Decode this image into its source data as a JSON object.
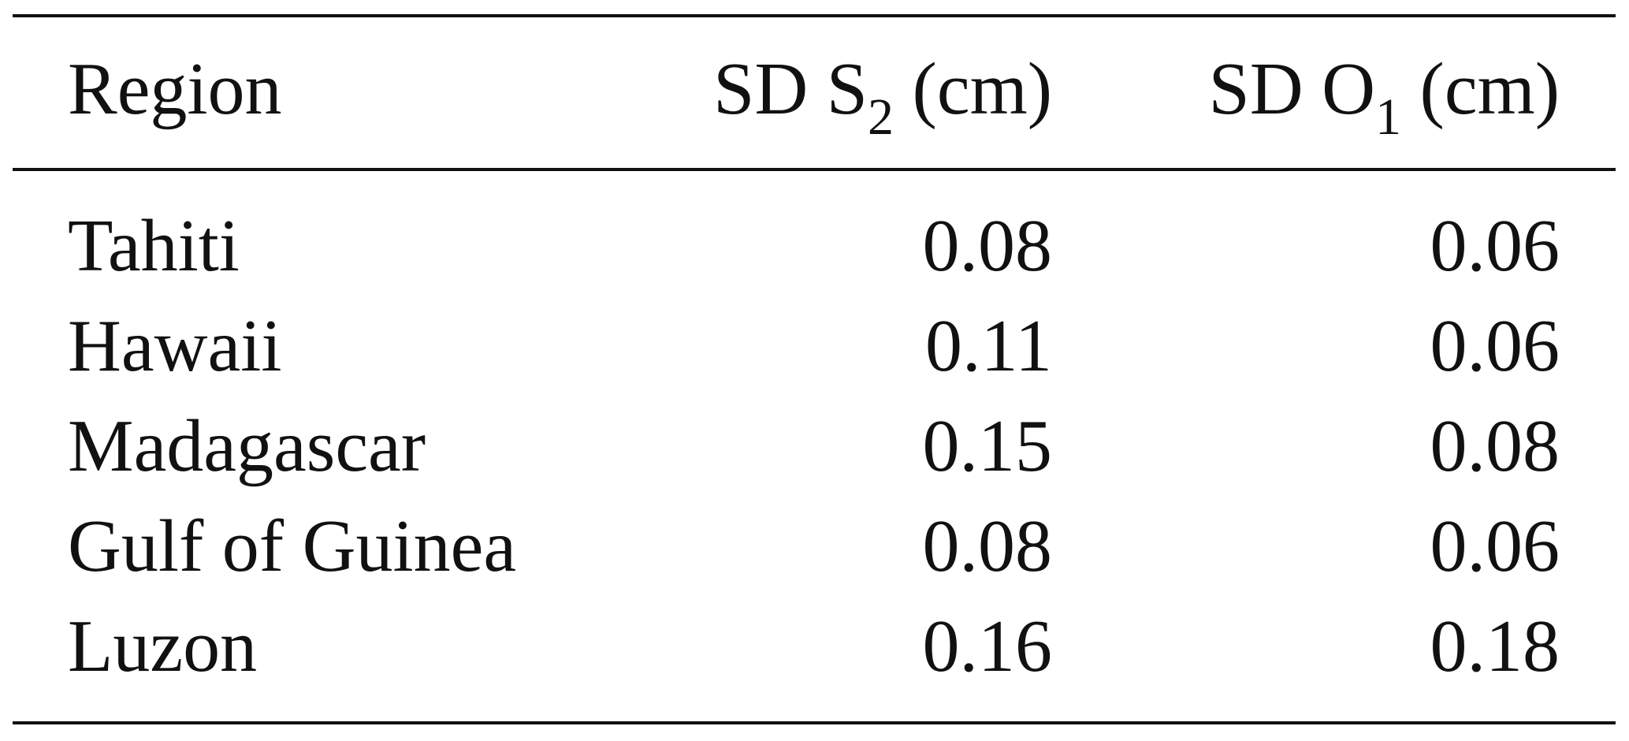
{
  "table": {
    "headers": {
      "region": "Region",
      "s2_prefix": "SD S",
      "s2_sub": "2",
      "s2_suffix": " (cm)",
      "o1_prefix": "SD O",
      "o1_sub": "1",
      "o1_suffix": " (cm)"
    },
    "rows": [
      {
        "region": "Tahiti",
        "sd_s2": "0.08",
        "sd_o1": "0.06"
      },
      {
        "region": "Hawaii",
        "sd_s2": "0.11",
        "sd_o1": "0.06"
      },
      {
        "region": "Madagascar",
        "sd_s2": "0.15",
        "sd_o1": "0.08"
      },
      {
        "region": "Gulf of Guinea",
        "sd_s2": "0.08",
        "sd_o1": "0.06"
      },
      {
        "region": "Luzon",
        "sd_s2": "0.16",
        "sd_o1": "0.18"
      }
    ]
  }
}
